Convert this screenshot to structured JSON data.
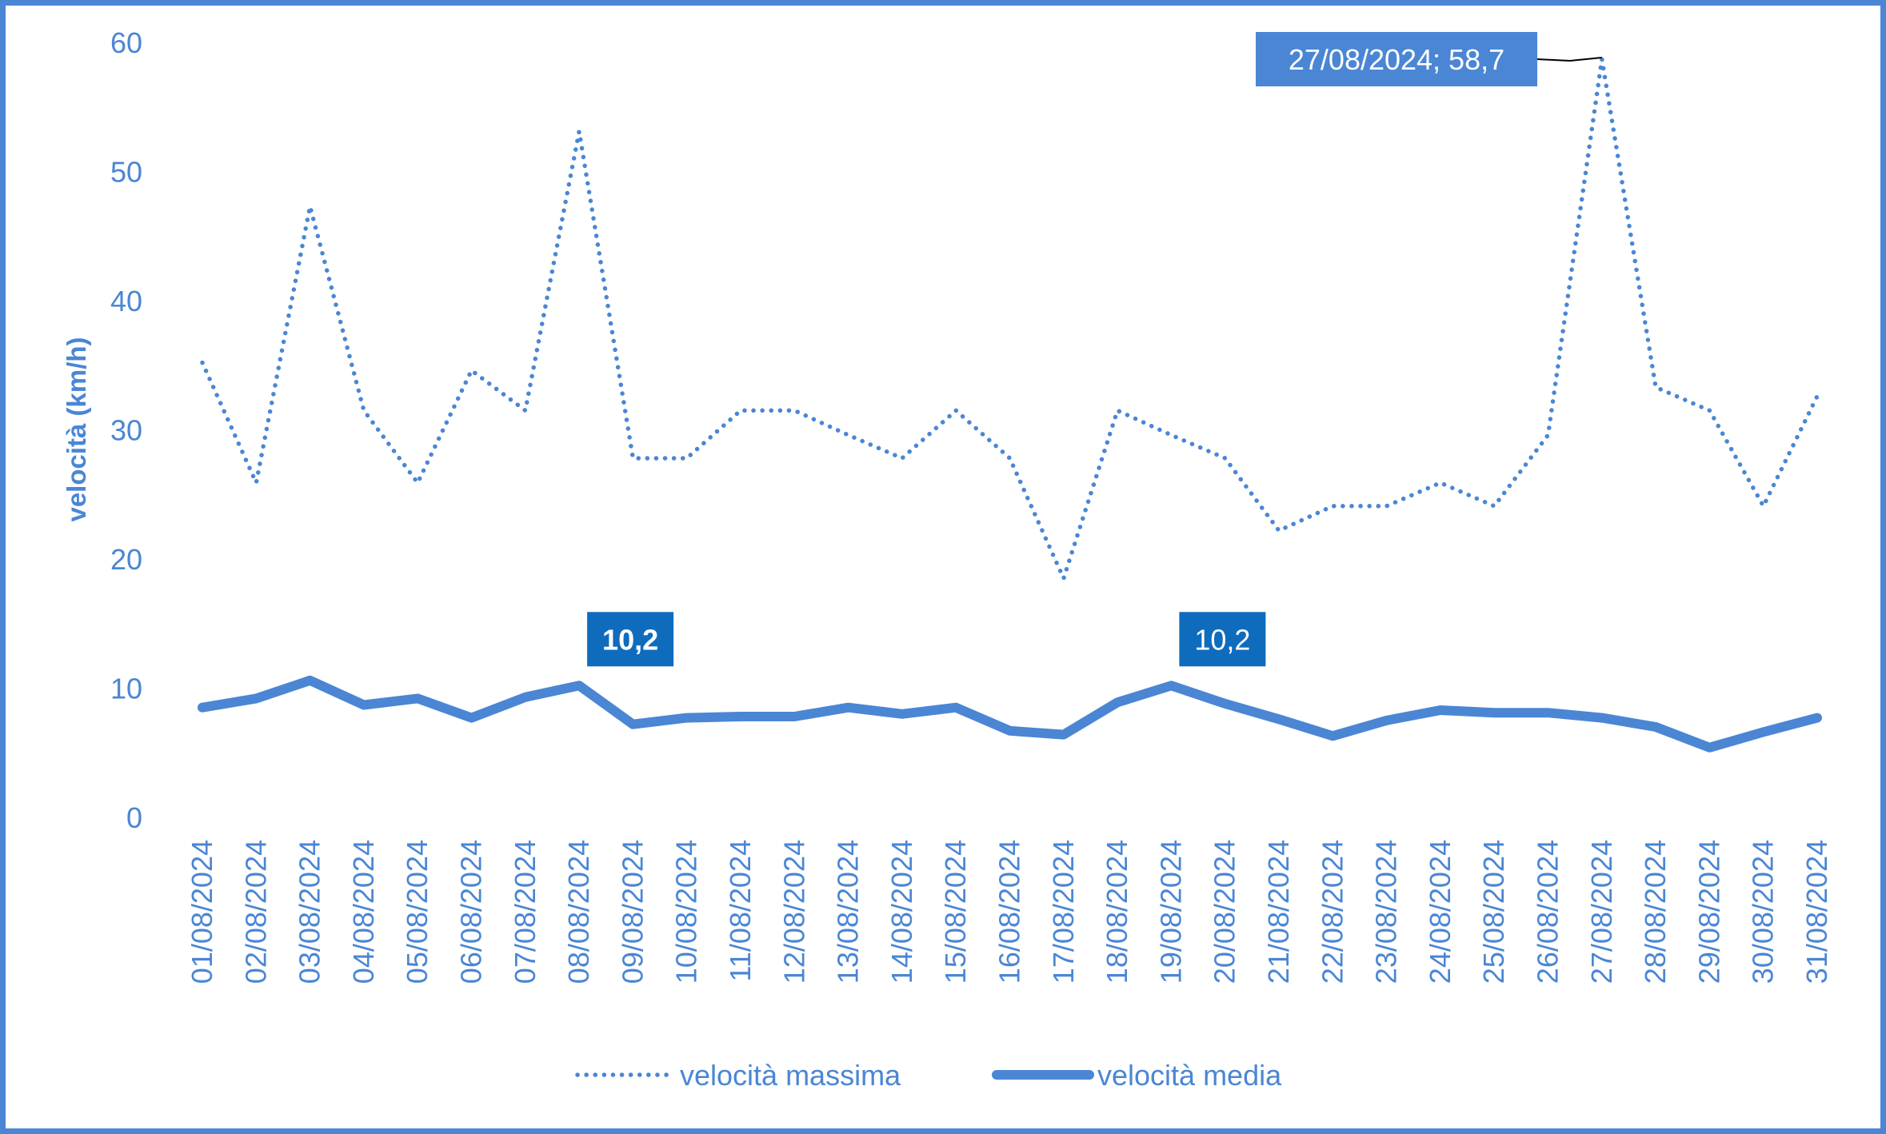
{
  "chart_data": {
    "type": "line",
    "title": "",
    "xlabel": "",
    "ylabel": "velocità (km/h)",
    "ylim": [
      0,
      60
    ],
    "yticks": [
      0,
      10,
      20,
      30,
      40,
      50,
      60
    ],
    "grid": false,
    "legend_position": "bottom",
    "categories": [
      "01/08/2024",
      "02/08/2024",
      "03/08/2024",
      "04/08/2024",
      "05/08/2024",
      "06/08/2024",
      "07/08/2024",
      "08/08/2024",
      "09/08/2024",
      "10/08/2024",
      "11/08/2024",
      "12/08/2024",
      "13/08/2024",
      "14/08/2024",
      "15/08/2024",
      "16/08/2024",
      "17/08/2024",
      "18/08/2024",
      "19/08/2024",
      "20/08/2024",
      "21/08/2024",
      "22/08/2024",
      "23/08/2024",
      "24/08/2024",
      "25/08/2024",
      "26/08/2024",
      "27/08/2024",
      "28/08/2024",
      "29/08/2024",
      "30/08/2024",
      "31/08/2024"
    ],
    "series": [
      {
        "name": "velocità massima",
        "style": "dotted",
        "color": "#4a86d4",
        "values": [
          35.2,
          25.9,
          47.3,
          31.5,
          25.9,
          34.6,
          31.5,
          53.1,
          27.8,
          27.8,
          31.5,
          31.5,
          29.6,
          27.8,
          31.5,
          27.8,
          18.5,
          31.5,
          29.6,
          27.8,
          22.2,
          24.1,
          24.1,
          25.9,
          24.1,
          29.6,
          58.7,
          33.3,
          31.5,
          24.1,
          32.6
        ]
      },
      {
        "name": "velocità media",
        "style": "solid",
        "color": "#4a86d4",
        "values": [
          8.5,
          9.2,
          10.6,
          8.7,
          9.2,
          7.7,
          9.3,
          10.2,
          7.2,
          7.7,
          7.8,
          7.8,
          8.5,
          8.0,
          8.5,
          6.7,
          6.4,
          8.9,
          10.2,
          8.8,
          7.6,
          6.3,
          7.5,
          8.3,
          8.1,
          8.1,
          7.7,
          7.0,
          5.4,
          6.6,
          7.7
        ]
      }
    ],
    "annotations": [
      {
        "series": 0,
        "index": 26,
        "label": "27/08/2024; 58,7",
        "bold": false,
        "color": "#4a86d4"
      },
      {
        "series": 1,
        "index": 7,
        "label": "10,2",
        "bold": true,
        "color": "#0f6cbd"
      },
      {
        "series": 1,
        "index": 18,
        "label": "10,2",
        "bold": false,
        "color": "#0f6cbd"
      }
    ]
  }
}
